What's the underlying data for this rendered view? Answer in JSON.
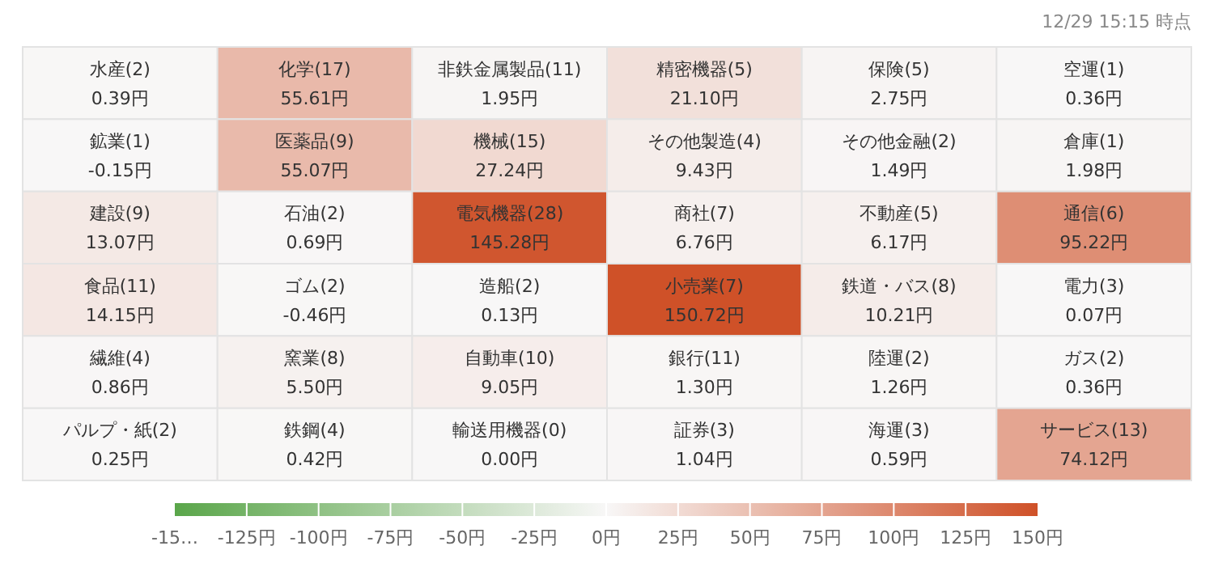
{
  "chart_data": {
    "type": "heatmap",
    "annotations": [
      "12/29 15:15 時点"
    ],
    "categories": [
      null,
      null,
      null,
      null,
      null,
      null
    ],
    "y_categories": [
      null,
      null,
      null,
      null,
      null,
      null
    ],
    "cells": [
      [
        0.39,
        55.61,
        1.95,
        21.1,
        2.75,
        0.36
      ],
      [
        -0.15,
        55.07,
        27.24,
        9.43,
        1.49,
        1.98
      ],
      [
        13.07,
        0.69,
        145.28,
        6.76,
        6.17,
        95.22
      ],
      [
        14.15,
        -0.46,
        0.13,
        150.72,
        10.21,
        0.07
      ],
      [
        0.86,
        5.5,
        9.05,
        1.3,
        1.26,
        0.36
      ],
      [
        0.25,
        0.42,
        0.0,
        1.04,
        0.59,
        74.12
      ]
    ],
    "cell_labels": [
      [
        "水産(2)\n0.39円",
        "化学(17)\n55.61円",
        "非鉄金属製品(11)\n1.95円",
        "精密機器(5)\n21.10円",
        "保険(5)\n2.75円",
        "空運(1)\n0.36円"
      ],
      [
        "鉱業(1)\n-0.15円",
        "医薬品(9)\n55.07円",
        "機械(15)\n27.24円",
        "その他製造(4)\n9.43円",
        "その他金融(2)\n1.49円",
        "倉庫(1)\n1.98円"
      ],
      [
        "建設(9)\n13.07円",
        "石油(2)\n0.69円",
        "電気機器(28)\n145.28円",
        "商社(7)\n6.76円",
        "不動産(5)\n6.17円",
        "通信(6)\n95.22円"
      ],
      [
        "食品(11)\n14.15円",
        "ゴム(2)\n-0.46円",
        "造船(2)\n0.13円",
        "小売業(7)\n150.72円",
        "鉄道・バス(8)\n10.21円",
        "電力(3)\n0.07円"
      ],
      [
        "繊維(4)\n0.86円",
        "窯業(8)\n5.50円",
        "自動車(10)\n9.05円",
        "銀行(11)\n1.30円",
        "陸運(2)\n1.26円",
        "ガス(2)\n0.36円"
      ],
      [
        "パルプ・紙(2)\n0.25円",
        "鉄鋼(4)\n0.42円",
        "輸送用機器(0)\n0.00円",
        "証券(3)\n1.04円",
        "海運(3)\n0.59円",
        "サービス(13)\n74.12円"
      ]
    ],
    "clim": [
      -150,
      150
    ],
    "cticks": [
      {
        "value": -150,
        "label": "-15…"
      },
      {
        "value": -125,
        "label": "-125円"
      },
      {
        "value": -100,
        "label": "-100円"
      },
      {
        "value": -75,
        "label": "-75円"
      },
      {
        "value": -50,
        "label": "-50円"
      },
      {
        "value": -25,
        "label": "-25円"
      },
      {
        "value": 0,
        "label": "0円"
      },
      {
        "value": 25,
        "label": "25円"
      },
      {
        "value": 50,
        "label": "50円"
      },
      {
        "value": 75,
        "label": "75円"
      },
      {
        "value": 100,
        "label": "100円"
      },
      {
        "value": 125,
        "label": "125円"
      },
      {
        "value": 150,
        "label": "150円"
      }
    ]
  }
}
